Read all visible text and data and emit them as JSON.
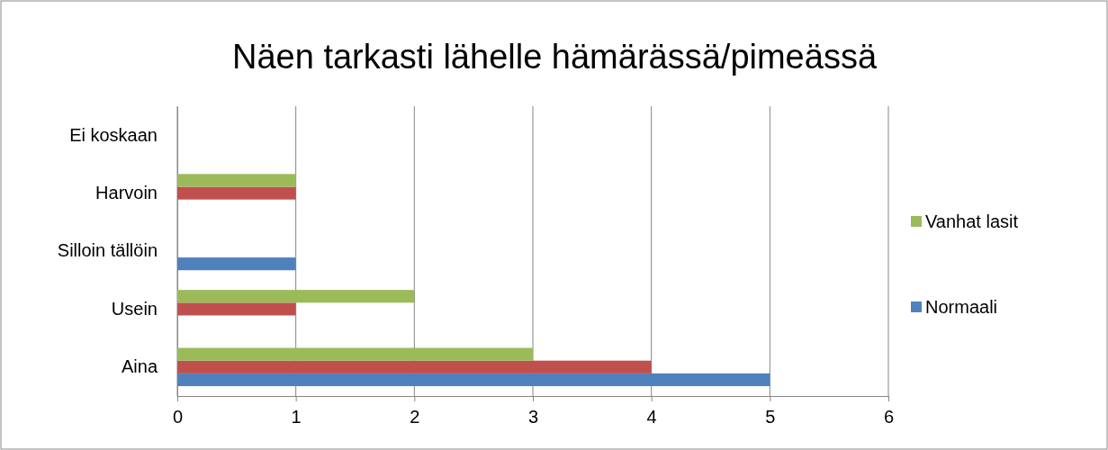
{
  "chart_data": {
    "type": "bar",
    "orientation": "horizontal",
    "title": "Näen tarkasti lähelle hämärässä/pimeässä",
    "categories": [
      "Ei koskaan",
      "Harvoin",
      "Silloin tällöin",
      "Usein",
      "Aina"
    ],
    "series": [
      {
        "name": "Normaali",
        "color": "#4f81bd",
        "values": [
          0,
          0,
          1,
          0,
          5
        ]
      },
      {
        "color": "#c0504d",
        "values": [
          0,
          1,
          0,
          1,
          4
        ]
      },
      {
        "name": "Vanhat lasit",
        "color": "#9bbb59",
        "values": [
          0,
          1,
          0,
          2,
          3
        ]
      }
    ],
    "xlim": [
      0,
      6
    ],
    "xticks": [
      0,
      1,
      2,
      3,
      4,
      5,
      6
    ],
    "grid": "x",
    "legend": "right"
  }
}
